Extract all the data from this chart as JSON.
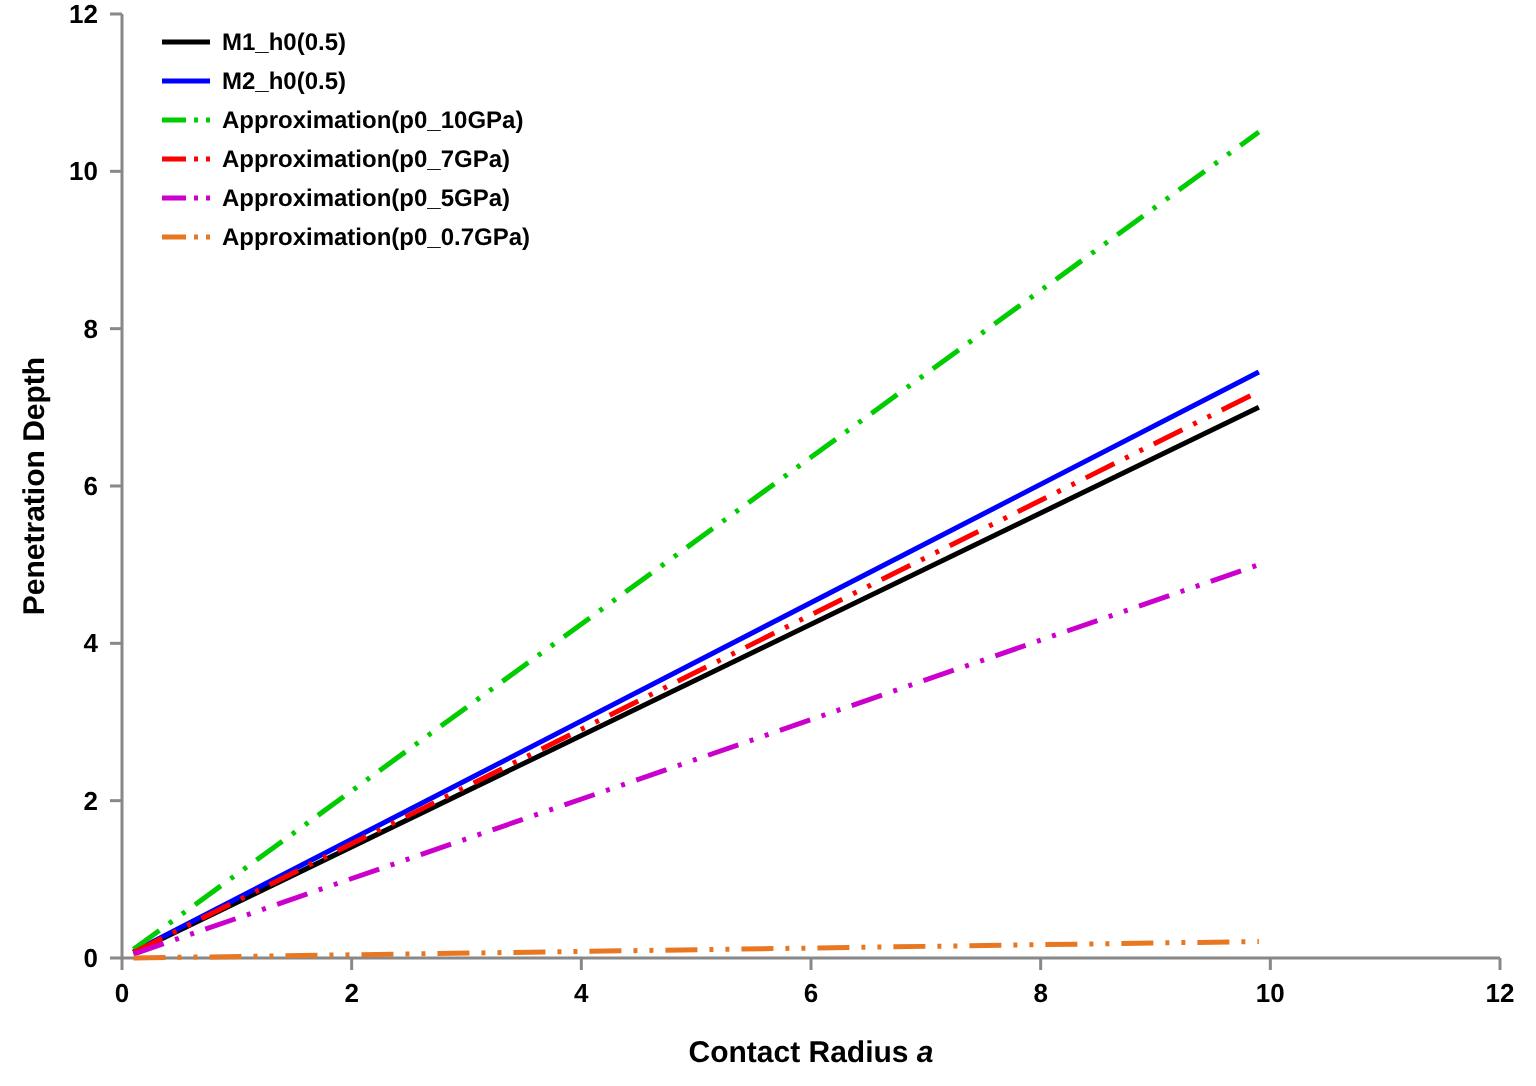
{
  "chart_data": {
    "type": "line",
    "xlabel": "Contact Radius a",
    "ylabel": "Penetration Depth",
    "x": [
      0.1,
      9.9
    ],
    "xlim": [
      0,
      12
    ],
    "xticks": [
      0,
      2,
      4,
      6,
      8,
      10,
      12
    ],
    "ylim": [
      0,
      12
    ],
    "yticks": [
      0,
      2,
      4,
      6,
      8,
      10,
      12
    ],
    "grid": false,
    "legend": "top left",
    "marker": "none",
    "series": [
      {
        "name": "M1_h0(0.5)",
        "color": "#000000",
        "values": [
          0.07,
          7.0
        ],
        "line_style": "solid"
      },
      {
        "name": "M2_h0(0.5)",
        "color": "#0000ff",
        "values": [
          0.08,
          7.45
        ],
        "line_style": "solid"
      },
      {
        "name": "Approximation(p0_10GPa)",
        "color": "#00cc00",
        "values": [
          0.11,
          10.5
        ],
        "line_style": "dashed"
      },
      {
        "name": "Approximation(p0_7GPa)",
        "color": "#ff0000",
        "values": [
          0.07,
          7.2
        ],
        "line_style": "dashed"
      },
      {
        "name": "Approximation(p0_5GPa)",
        "color": "#cc00cc",
        "values": [
          0.05,
          5.0
        ],
        "line_style": "dashed"
      },
      {
        "name": "Approximation(p0_0.7GPa)",
        "color": "#e87722",
        "values": [
          0.0,
          0.21
        ],
        "line_style": "dashed"
      }
    ]
  }
}
